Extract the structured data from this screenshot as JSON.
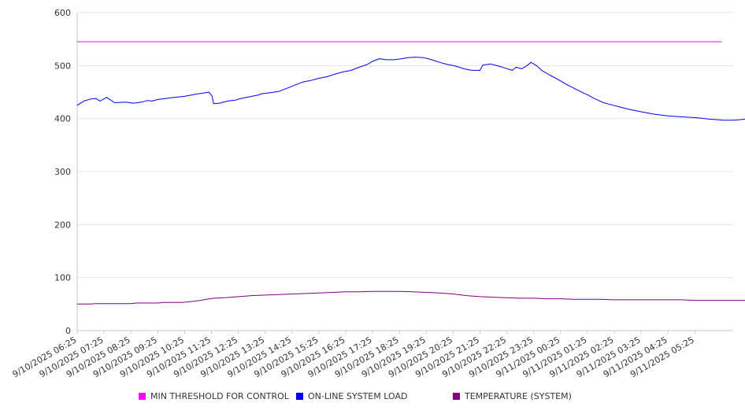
{
  "chart_data": {
    "type": "line",
    "x": [
      "9/10/2025 06:25",
      "9/10/2025 07:25",
      "9/10/2025 08:25",
      "9/10/2025 09:25",
      "9/10/2025 10:25",
      "9/10/2025 11:25",
      "9/10/2025 12:25",
      "9/10/2025 13:25",
      "9/10/2025 14:25",
      "9/10/2025 15:25",
      "9/10/2025 16:25",
      "9/10/2025 17:25",
      "9/10/2025 18:25",
      "9/10/2025 19:25",
      "9/10/2025 20:25",
      "9/10/2025 21:25",
      "9/10/2025 22:25",
      "9/10/2025 23:25",
      "9/11/2025 00:25",
      "9/11/2025 01:25",
      "9/11/2025 02:25",
      "9/11/2025 03:25",
      "9/11/2025 04:25",
      "9/11/2025 05:25"
    ],
    "ylim": [
      0,
      600
    ],
    "yticks": [
      "0",
      "100",
      "200",
      "300",
      "400",
      "500",
      "600"
    ],
    "grid": true,
    "legend_position": "bottom",
    "series": [
      {
        "name": "MIN THRESHOLD FOR CONTROL",
        "color": "#ff00ff",
        "points": [
          [
            0,
            545
          ],
          [
            24,
            545
          ]
        ]
      },
      {
        "name": "ON-LINE SYSTEM LOAD",
        "color": "#0000ee",
        "points": [
          [
            0,
            425
          ],
          [
            0.25,
            433
          ],
          [
            0.5,
            437
          ],
          [
            0.7,
            438
          ],
          [
            0.85,
            433
          ],
          [
            1.1,
            440
          ],
          [
            1.4,
            430
          ],
          [
            1.8,
            431
          ],
          [
            2.1,
            429
          ],
          [
            2.4,
            431
          ],
          [
            2.6,
            434
          ],
          [
            2.8,
            433
          ],
          [
            3.0,
            436
          ],
          [
            3.3,
            438
          ],
          [
            3.6,
            440
          ],
          [
            4.0,
            442
          ],
          [
            4.4,
            446
          ],
          [
            4.7,
            448
          ],
          [
            4.9,
            450
          ],
          [
            5.02,
            443
          ],
          [
            5.08,
            428
          ],
          [
            5.3,
            429
          ],
          [
            5.6,
            433
          ],
          [
            5.9,
            435
          ],
          [
            6.1,
            438
          ],
          [
            6.4,
            441
          ],
          [
            6.7,
            444
          ],
          [
            6.9,
            447
          ],
          [
            7.2,
            449
          ],
          [
            7.5,
            451
          ],
          [
            7.8,
            457
          ],
          [
            8.1,
            463
          ],
          [
            8.4,
            469
          ],
          [
            8.7,
            472
          ],
          [
            9.0,
            476
          ],
          [
            9.3,
            479
          ],
          [
            9.6,
            484
          ],
          [
            9.9,
            488
          ],
          [
            10.2,
            491
          ],
          [
            10.5,
            497
          ],
          [
            10.8,
            502
          ],
          [
            11.0,
            508
          ],
          [
            11.25,
            513
          ],
          [
            11.5,
            511
          ],
          [
            11.8,
            511
          ],
          [
            12.1,
            513
          ],
          [
            12.3,
            515
          ],
          [
            12.6,
            516
          ],
          [
            12.9,
            515
          ],
          [
            13.2,
            511
          ],
          [
            13.5,
            506
          ],
          [
            13.8,
            502
          ],
          [
            14.1,
            499
          ],
          [
            14.4,
            494
          ],
          [
            14.7,
            491
          ],
          [
            15.0,
            491
          ],
          [
            15.1,
            501
          ],
          [
            15.4,
            503
          ],
          [
            15.7,
            499
          ],
          [
            15.95,
            495
          ],
          [
            16.2,
            491
          ],
          [
            16.35,
            497
          ],
          [
            16.55,
            494
          ],
          [
            16.75,
            500
          ],
          [
            16.9,
            506
          ],
          [
            17.1,
            500
          ],
          [
            17.3,
            491
          ],
          [
            17.6,
            482
          ],
          [
            17.9,
            474
          ],
          [
            18.2,
            465
          ],
          [
            18.4,
            460
          ],
          [
            18.7,
            452
          ],
          [
            19.0,
            445
          ],
          [
            19.3,
            437
          ],
          [
            19.6,
            430
          ],
          [
            19.9,
            426
          ],
          [
            20.2,
            422
          ],
          [
            20.5,
            418
          ],
          [
            20.8,
            415
          ],
          [
            21.1,
            412
          ],
          [
            21.4,
            409
          ],
          [
            21.7,
            407
          ],
          [
            22.0,
            405
          ],
          [
            22.3,
            404
          ],
          [
            22.6,
            403
          ],
          [
            22.9,
            402
          ],
          [
            23.2,
            401
          ],
          [
            23.5,
            399
          ],
          [
            23.8,
            398
          ],
          [
            24.1,
            397
          ],
          [
            24.4,
            397
          ],
          [
            24.7,
            398
          ],
          [
            25.0,
            400
          ],
          [
            25.3,
            402
          ],
          [
            25.6,
            406
          ],
          [
            25.9,
            412
          ],
          [
            26.2,
            418
          ],
          [
            26.5,
            426
          ],
          [
            26.8,
            433
          ],
          [
            26.95,
            438
          ]
        ]
      },
      {
        "name": "TEMPERATURE (SYSTEM)",
        "color": "#800080",
        "points": [
          [
            0,
            50
          ],
          [
            0.5,
            50
          ],
          [
            0.7,
            51
          ],
          [
            1.5,
            51
          ],
          [
            2.0,
            51
          ],
          [
            2.2,
            52
          ],
          [
            3.0,
            52
          ],
          [
            3.2,
            53
          ],
          [
            3.9,
            53
          ],
          [
            4.1,
            54
          ],
          [
            4.3,
            55
          ],
          [
            4.6,
            57
          ],
          [
            4.8,
            59
          ],
          [
            5.1,
            61
          ],
          [
            5.5,
            62
          ],
          [
            6.0,
            64
          ],
          [
            6.5,
            66
          ],
          [
            7.0,
            67
          ],
          [
            7.5,
            68
          ],
          [
            8.0,
            69
          ],
          [
            8.5,
            70
          ],
          [
            9.0,
            71
          ],
          [
            9.5,
            72
          ],
          [
            10.0,
            73
          ],
          [
            10.5,
            73
          ],
          [
            11.0,
            74
          ],
          [
            11.5,
            74
          ],
          [
            12.0,
            74
          ],
          [
            12.5,
            73
          ],
          [
            13.0,
            72
          ],
          [
            13.5,
            71
          ],
          [
            14.0,
            69
          ],
          [
            14.5,
            66
          ],
          [
            15.0,
            64
          ],
          [
            15.5,
            63
          ],
          [
            16.0,
            62
          ],
          [
            16.5,
            61
          ],
          [
            17.0,
            61
          ],
          [
            17.5,
            60
          ],
          [
            18.0,
            60
          ],
          [
            18.5,
            59
          ],
          [
            19.0,
            59
          ],
          [
            19.5,
            59
          ],
          [
            20.0,
            58
          ],
          [
            20.5,
            58
          ],
          [
            21.0,
            58
          ],
          [
            21.5,
            58
          ],
          [
            22.0,
            58
          ],
          [
            22.5,
            58
          ],
          [
            23.0,
            57
          ],
          [
            23.5,
            57
          ],
          [
            24.0,
            57
          ],
          [
            24.5,
            57
          ],
          [
            25.0,
            57
          ],
          [
            25.5,
            57
          ],
          [
            26.0,
            57
          ],
          [
            26.5,
            57
          ],
          [
            26.95,
            57
          ]
        ]
      }
    ]
  }
}
